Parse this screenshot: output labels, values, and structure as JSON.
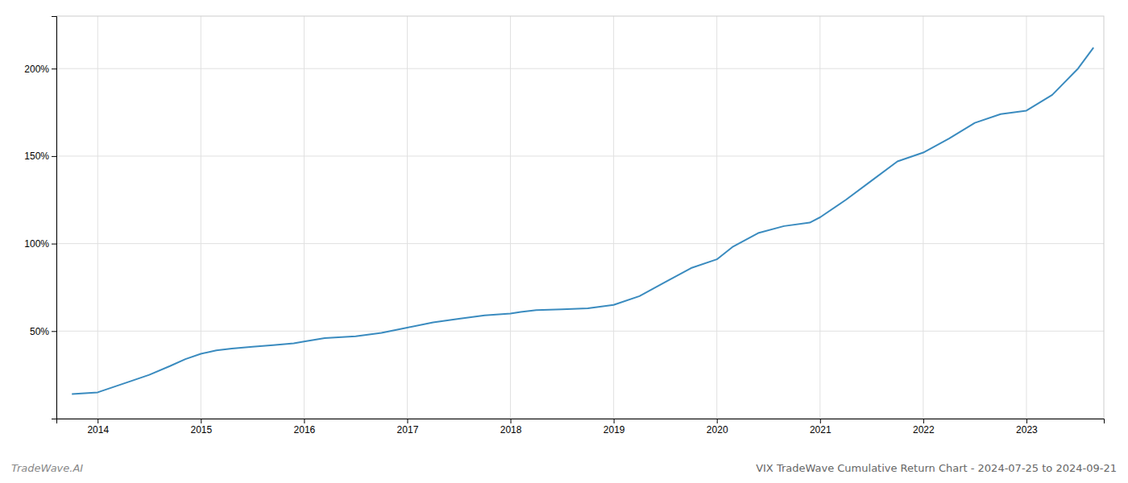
{
  "chart_data": {
    "type": "line",
    "title": "VIX TradeWave Cumulative Return Chart - 2024-07-25 to 2024-09-21",
    "annotations": [
      "TradeWave.AI"
    ],
    "color": "#3a8bbf",
    "grid": true,
    "x": [
      2013.75,
      2014.0,
      2014.15,
      2014.3,
      2014.5,
      2014.7,
      2014.85,
      2015.0,
      2015.15,
      2015.3,
      2015.5,
      2015.7,
      2015.9,
      2016.0,
      2016.2,
      2016.5,
      2016.75,
      2017.0,
      2017.25,
      2017.5,
      2017.75,
      2018.0,
      2018.1,
      2018.25,
      2018.5,
      2018.75,
      2019.0,
      2019.25,
      2019.5,
      2019.75,
      2020.0,
      2020.15,
      2020.4,
      2020.65,
      2020.9,
      2021.0,
      2021.25,
      2021.5,
      2021.75,
      2022.0,
      2022.25,
      2022.5,
      2022.75,
      2023.0,
      2023.25,
      2023.5,
      2023.65
    ],
    "values": [
      14,
      15,
      18,
      21,
      25,
      30,
      34,
      37,
      39,
      40,
      41,
      42,
      43,
      44,
      46,
      47,
      49,
      52,
      55,
      57,
      59,
      60,
      61,
      62,
      62.5,
      63,
      65,
      70,
      78,
      86,
      91,
      98,
      106,
      110,
      112,
      115,
      125,
      136,
      147,
      152,
      160,
      169,
      174,
      176,
      185,
      200,
      212
    ],
    "xlim": [
      2013.6,
      2023.75
    ],
    "xticks": [
      2014,
      2015,
      2016,
      2017,
      2018,
      2019,
      2020,
      2021,
      2022,
      2023
    ],
    "ylim": [
      0,
      230
    ],
    "yticks": [
      {
        "value": 50,
        "label": "50%"
      },
      {
        "value": 100,
        "label": "100%"
      },
      {
        "value": 150,
        "label": "150%"
      },
      {
        "value": 200,
        "label": "200%"
      }
    ]
  }
}
